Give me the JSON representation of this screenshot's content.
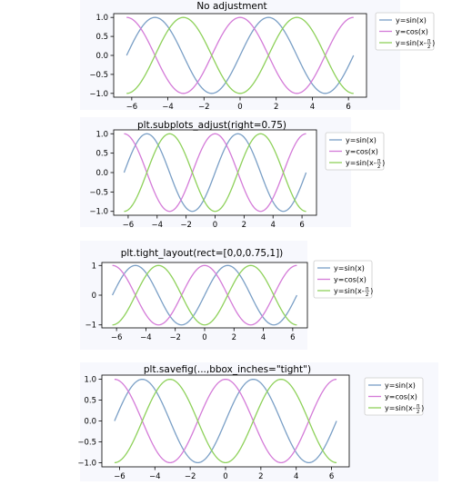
{
  "colors": {
    "panel_bg": "#f7f8fd",
    "sin": "#7a9fc6",
    "cos": "#d47bd8",
    "shift": "#8ed15a",
    "axes": "#000000"
  },
  "legend": {
    "sin": "y=sin(x)",
    "cos": "y=cos(x)",
    "shift_prefix": "y=sin(x-",
    "shift_num": "π",
    "shift_den": "2",
    "shift_suffix": ")"
  },
  "chart_data": [
    {
      "type": "line",
      "title": "No adjustment",
      "x_range": [
        -6.283,
        6.283
      ],
      "xlim": [
        -7,
        7
      ],
      "ylim": [
        -1.1,
        1.1
      ],
      "xticks": [
        -6,
        -4,
        -2,
        0,
        2,
        4,
        6
      ],
      "yticks": [
        "-1.0",
        "-0.5",
        "0.0",
        "0.5",
        "1.0"
      ],
      "series": [
        {
          "name": "y=sin(x)",
          "function": "sin(x)"
        },
        {
          "name": "y=cos(x)",
          "function": "cos(x)"
        },
        {
          "name": "y=sin(x-π/2)",
          "function": "sin(x-π/2)"
        }
      ],
      "legend_position": "outside-right"
    },
    {
      "type": "line",
      "title": "plt.subplots_adjust(right=0.75)",
      "x_range": [
        -6.283,
        6.283
      ],
      "xlim": [
        -7,
        7
      ],
      "ylim": [
        -1.1,
        1.1
      ],
      "xticks": [
        -6,
        -4,
        -2,
        0,
        2,
        4,
        6
      ],
      "yticks": [
        "-1.0",
        "-0.5",
        "0.0",
        "0.5",
        "1.0"
      ],
      "series": [
        {
          "name": "y=sin(x)",
          "function": "sin(x)"
        },
        {
          "name": "y=cos(x)",
          "function": "cos(x)"
        },
        {
          "name": "y=sin(x-π/2)",
          "function": "sin(x-π/2)"
        }
      ],
      "legend_position": "outside-right"
    },
    {
      "type": "line",
      "title": "plt.tight_layout(rect=[0,0,0.75,1])",
      "x_range": [
        -6.283,
        6.283
      ],
      "xlim": [
        -7,
        7
      ],
      "ylim": [
        -1.1,
        1.1
      ],
      "xticks": [
        -6,
        -4,
        -2,
        0,
        2,
        4,
        6
      ],
      "yticks": [
        "−1",
        "0",
        "1"
      ],
      "series": [
        {
          "name": "y=sin(x)",
          "function": "sin(x)"
        },
        {
          "name": "y=cos(x)",
          "function": "cos(x)"
        },
        {
          "name": "y=sin(x-π/2)",
          "function": "sin(x-π/2)"
        }
      ],
      "legend_position": "outside-right"
    },
    {
      "type": "line",
      "title": "plt.savefig(...,bbox_inches=\"tight\")",
      "x_range": [
        -6.283,
        6.283
      ],
      "xlim": [
        -7,
        7
      ],
      "ylim": [
        -1.1,
        1.1
      ],
      "xticks": [
        -6,
        -4,
        -2,
        0,
        2,
        4,
        6
      ],
      "yticks": [
        "-1.0",
        "-0.5",
        "0.0",
        "0.5",
        "1.0"
      ],
      "series": [
        {
          "name": "y=sin(x)",
          "function": "sin(x)"
        },
        {
          "name": "y=cos(x)",
          "function": "cos(x)"
        },
        {
          "name": "y=sin(x-π/2)",
          "function": "sin(x-π/2)"
        }
      ],
      "legend_position": "outside-right"
    }
  ]
}
